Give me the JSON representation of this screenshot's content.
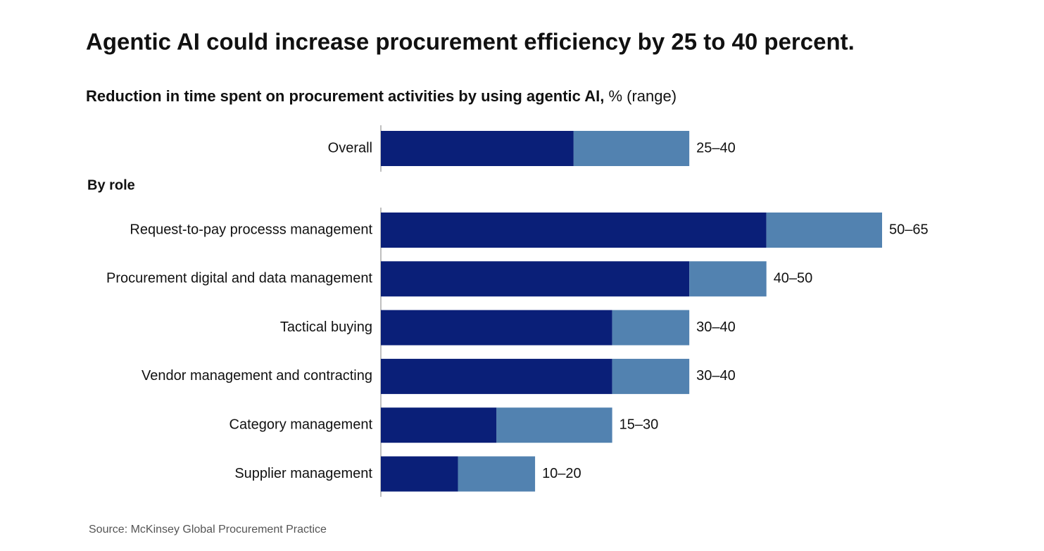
{
  "chart_data": {
    "type": "range-bar",
    "title": "Agentic AI could increase procurement efficiency by 25 to 40 percent.",
    "subtitle": "Reduction in time spent on procurement activities by using agentic AI,",
    "subtitle_unit": "% (range)",
    "section_label": "By role",
    "categories": [
      "Overall",
      "Request-to-pay processs management",
      "Procurement digital and data management",
      "Tactical buying",
      "Vendor management and contracting",
      "Category management",
      "Supplier management"
    ],
    "series": [
      {
        "color": "#0a1f78",
        "values": [
          25,
          50,
          40,
          30,
          30,
          15,
          10
        ]
      },
      {
        "color": "#5282b0",
        "values": [
          40,
          65,
          50,
          40,
          40,
          30,
          20
        ]
      }
    ],
    "value_labels": [
      "25–40",
      "50–65",
      "40–50",
      "30–40",
      "30–40",
      "15–30",
      "10–20"
    ],
    "source": "Source: McKinsey Global Procurement Practice"
  }
}
